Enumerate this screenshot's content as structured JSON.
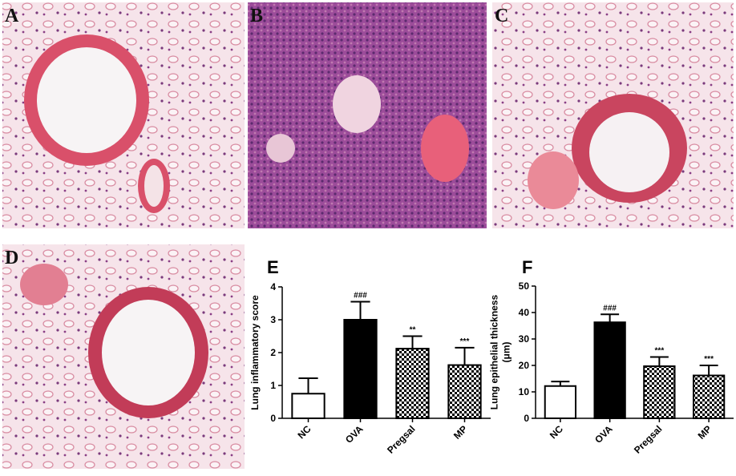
{
  "panels": [
    {
      "label": "A"
    },
    {
      "label": "B"
    },
    {
      "label": "C"
    },
    {
      "label": "D"
    }
  ],
  "chart_data": [
    {
      "type": "bar",
      "label": "E",
      "ylabel": [
        "Lung inflammatory score"
      ],
      "categories": [
        "NC",
        "OVA",
        "Pregsal",
        "MP"
      ],
      "values": [
        0.75,
        3.0,
        2.12,
        1.62
      ],
      "errors": [
        0.47,
        0.55,
        0.38,
        0.53
      ],
      "annotations": [
        null,
        "###",
        "**",
        "***"
      ],
      "fills": [
        "white",
        "black",
        "checker",
        "checker"
      ],
      "ylim": [
        0,
        4
      ],
      "yticks": [
        0,
        1,
        2,
        3,
        4
      ]
    },
    {
      "type": "bar",
      "label": "F",
      "ylabel": [
        "Lung epithelial thickness",
        "(μm)"
      ],
      "categories": [
        "NC",
        "OVA",
        "Pregsal",
        "MP"
      ],
      "values": [
        12.2,
        36.3,
        19.7,
        16.2
      ],
      "errors": [
        1.7,
        3.0,
        3.5,
        3.8
      ],
      "annotations": [
        null,
        "###",
        "***",
        "***"
      ],
      "fills": [
        "white",
        "black",
        "checker",
        "checker"
      ],
      "ylim": [
        0,
        50
      ],
      "yticks": [
        0,
        10,
        20,
        30,
        40,
        50
      ]
    }
  ]
}
